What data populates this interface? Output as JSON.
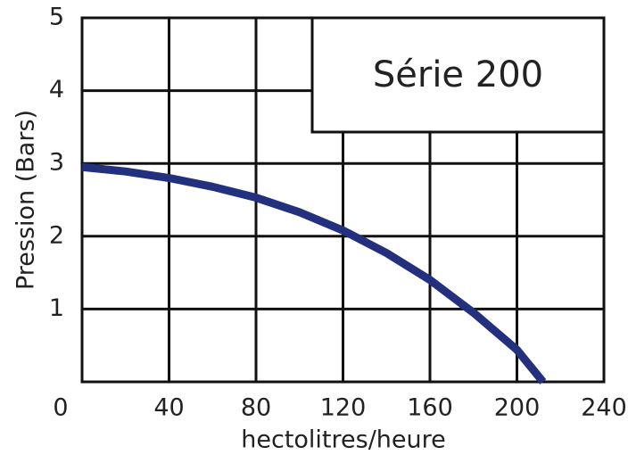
{
  "chart_data": {
    "type": "line",
    "x_label": "hectolitres/heure",
    "y_label": "Pression (Bars)",
    "x": [
      0,
      20,
      40,
      60,
      80,
      100,
      120,
      140,
      160,
      180,
      200,
      212
    ],
    "series": [
      {
        "name": "Série 200",
        "color": "#22307d",
        "values": [
          2.95,
          2.89,
          2.8,
          2.68,
          2.53,
          2.33,
          2.08,
          1.77,
          1.4,
          0.95,
          0.44,
          0
        ]
      }
    ],
    "xlim": [
      0,
      240
    ],
    "ylim": [
      0,
      5
    ],
    "xticks": [
      0,
      40,
      80,
      120,
      160,
      200,
      240
    ],
    "yticks": [
      1,
      2,
      3,
      4,
      5
    ],
    "grid": true,
    "legend": "upper right"
  }
}
